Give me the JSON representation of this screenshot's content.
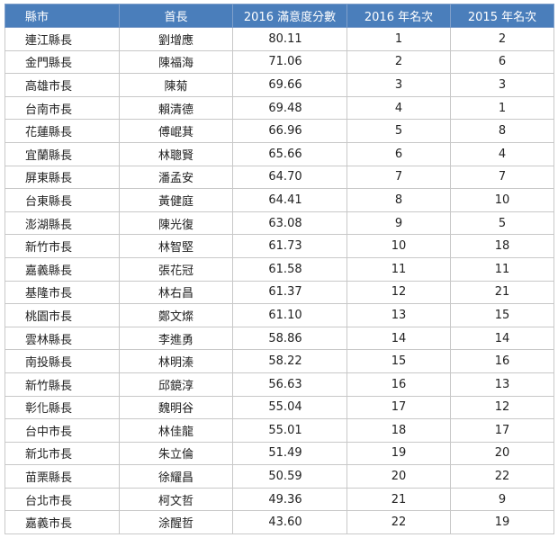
{
  "table": {
    "headers": [
      "縣市",
      "首長",
      "2016 滿意度分數",
      "2016 年名次",
      "2015 年名次"
    ],
    "rows": [
      [
        "連江縣長",
        "劉增應",
        "80.11",
        1,
        2
      ],
      [
        "金門縣長",
        "陳福海",
        "71.06",
        2,
        6
      ],
      [
        "高雄市長",
        "陳菊",
        "69.66",
        3,
        3
      ],
      [
        "台南市長",
        "賴清德",
        "69.48",
        4,
        1
      ],
      [
        "花蓮縣長",
        "傅崐萁",
        "66.96",
        5,
        8
      ],
      [
        "宜蘭縣長",
        "林聰賢",
        "65.66",
        6,
        4
      ],
      [
        "屏東縣長",
        "潘孟安",
        "64.70",
        7,
        7
      ],
      [
        "台東縣長",
        "黃健庭",
        "64.41",
        8,
        10
      ],
      [
        "澎湖縣長",
        "陳光復",
        "63.08",
        9,
        5
      ],
      [
        "新竹市長",
        "林智堅",
        "61.73",
        10,
        18
      ],
      [
        "嘉義縣長",
        "張花冠",
        "61.58",
        11,
        11
      ],
      [
        "基隆市長",
        "林右昌",
        "61.37",
        12,
        21
      ],
      [
        "桃園市長",
        "鄭文燦",
        "61.10",
        13,
        15
      ],
      [
        "雲林縣長",
        "李進勇",
        "58.86",
        14,
        14
      ],
      [
        "南投縣長",
        "林明溱",
        "58.22",
        15,
        16
      ],
      [
        "新竹縣長",
        "邱鏡淳",
        "56.63",
        16,
        13
      ],
      [
        "彰化縣長",
        "魏明谷",
        "55.04",
        17,
        12
      ],
      [
        "台中市長",
        "林佳龍",
        "55.01",
        18,
        17
      ],
      [
        "新北市長",
        "朱立倫",
        "51.49",
        19,
        20
      ],
      [
        "苗栗縣長",
        "徐耀昌",
        "50.59",
        20,
        22
      ],
      [
        "台北市長",
        "柯文哲",
        "49.36",
        21,
        9
      ],
      [
        "嘉義市長",
        "涂醒哲",
        "43.60",
        22,
        19
      ]
    ]
  }
}
